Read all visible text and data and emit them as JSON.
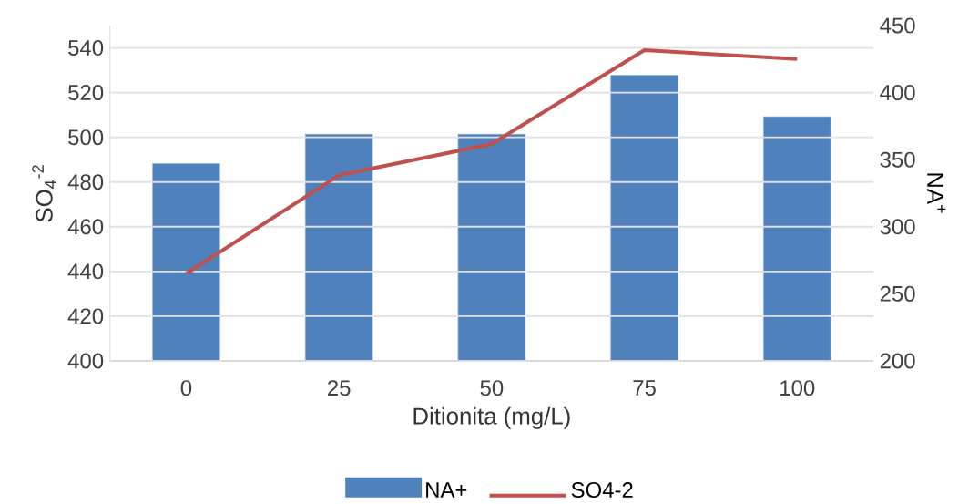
{
  "chart_data": {
    "type": "bar",
    "xlabel": "Ditionita (mg/L)",
    "ylabel": "SO$_{4}$$^{-2}$",
    "y2label": "NA$^{+}$",
    "categories": [
      "0",
      "25",
      "50",
      "75",
      "100"
    ],
    "series": [
      {
        "name": "NA+",
        "axis": "y2",
        "color": "#4f81bd",
        "values": [
          347,
          369,
          369,
          413,
          382
        ]
      },
      {
        "name": "SO4-2",
        "type": "line",
        "axis": "y",
        "color": "#c0504d",
        "values": [
          439,
          483,
          497,
          539,
          535
        ]
      }
    ],
    "ylim": [
      400,
      550
    ],
    "yticks": [
      400,
      420,
      440,
      460,
      480,
      500,
      520,
      540
    ],
    "y2lim": [
      200,
      450
    ],
    "y2ticks": [
      200,
      250,
      300,
      350,
      400,
      450
    ],
    "grid": "y",
    "legend": "bottom",
    "marker": "none"
  }
}
